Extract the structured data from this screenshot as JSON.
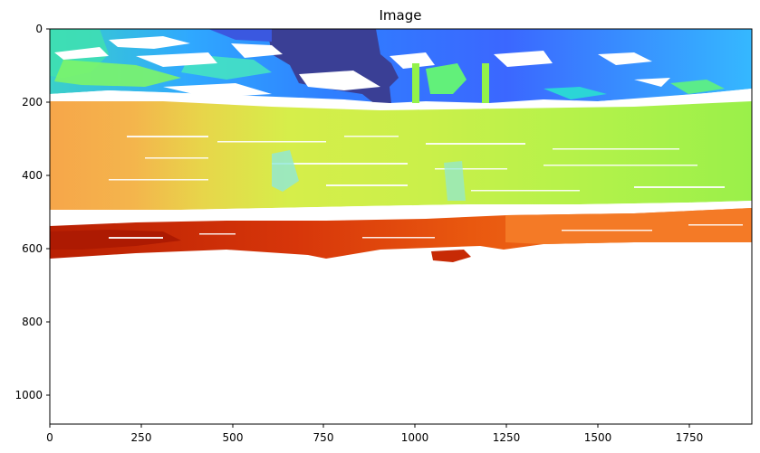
{
  "figure": {
    "title": "Image",
    "x_ticks": [
      "0",
      "250",
      "500",
      "750",
      "1000",
      "1250",
      "1500",
      "1750"
    ],
    "y_ticks": [
      "0",
      "200",
      "400",
      "600",
      "800",
      "1000"
    ]
  },
  "colors": {
    "top_sky_blue": "#2f7fff",
    "top_cyan": "#20c8ea",
    "top_green": "#55f07a",
    "dark_navy": "#3a3f95",
    "mid_orange": "#f7a34a",
    "mid_yellow_green": "#c9f04a",
    "mid_lime": "#93f24a",
    "lower_red": "#c72a05",
    "lower_orange": "#f26b1c",
    "background": "#ffffff"
  }
}
